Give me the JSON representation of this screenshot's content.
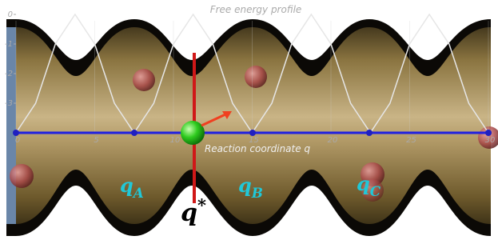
{
  "chart_data": {
    "type": "line",
    "title": "Free energy profile",
    "x_label": "Reaction coordinate q",
    "x": [
      0,
      1.25,
      2.5,
      3.75,
      5,
      6.25,
      7.5,
      8.75,
      10,
      11.25,
      12.5,
      13.75,
      15,
      16.25,
      17.5,
      18.75,
      20,
      21.25,
      22.5,
      23.75,
      25,
      26.25,
      27.5,
      28.75,
      30
    ],
    "values": [
      -4,
      -3,
      -1,
      0,
      -1,
      -3,
      -4,
      -3,
      -1,
      0,
      -1,
      -3,
      -4,
      -3,
      -1,
      0,
      -1,
      -3,
      -4,
      -3,
      -1,
      0,
      -1,
      -3,
      -4
    ],
    "color": "#e6e6e6",
    "xlim": [
      0,
      30
    ],
    "xticks": [
      0,
      5,
      10,
      15,
      20,
      25,
      30
    ],
    "ylim": [
      -4,
      0
    ],
    "yticks": [
      0,
      -1,
      -2,
      -3
    ],
    "annotations": [
      {
        "base": "q",
        "sub": "A"
      },
      {
        "base": "q",
        "sub": "B"
      },
      {
        "base": "q",
        "sub": "C"
      },
      {
        "base": "q",
        "sup": "*"
      }
    ]
  }
}
